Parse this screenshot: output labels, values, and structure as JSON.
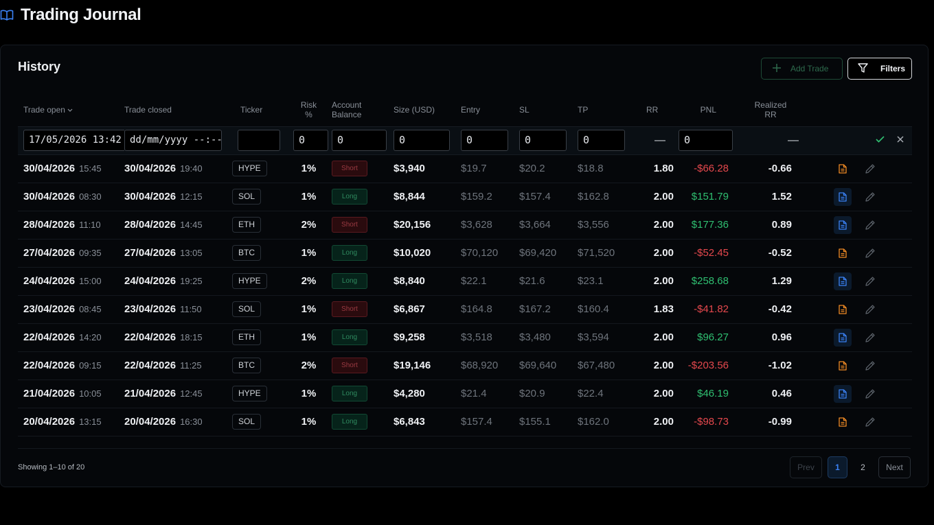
{
  "app": {
    "title": "Trading Journal",
    "logo_icon": "book-open-icon"
  },
  "history": {
    "title": "History",
    "add_trade_label": "Add Trade",
    "filters_label": "Filters",
    "columns": {
      "trade_open": "Trade open",
      "trade_closed": "Trade closed",
      "ticker": "Ticker",
      "risk_1": "Risk",
      "risk_2": "%",
      "balance_1": "Account",
      "balance_2": "Balance",
      "size": "Size (USD)",
      "entry": "Entry",
      "sl": "SL",
      "tp": "TP",
      "rr": "RR",
      "pnl": "PNL",
      "realized_1": "Realized",
      "realized_2": "RR"
    },
    "new_row": {
      "open_value": "17/05/2026 13:42",
      "closed_placeholder": "dd/mm/yyyy --:--",
      "ticker_value": "",
      "risk_value": "0",
      "balance_value": "0",
      "size_value": "0",
      "entry_value": "0",
      "sl_value": "0",
      "tp_value": "0",
      "rr_value": "—",
      "pnl_value": "0",
      "realized_value": "—"
    },
    "rows": [
      {
        "open_date": "30/04/2026",
        "open_time": "15:45",
        "close_date": "30/04/2026",
        "close_time": "19:40",
        "ticker": "HYPE",
        "risk": "1%",
        "side": "Short",
        "size": "$3,940",
        "entry": "$19.7",
        "sl": "$20.2",
        "tp": "$18.8",
        "rr": "1.80",
        "pnl": "-$66.28",
        "realized": "-0.66",
        "note_color": "orange"
      },
      {
        "open_date": "30/04/2026",
        "open_time": "08:30",
        "close_date": "30/04/2026",
        "close_time": "12:15",
        "ticker": "SOL",
        "risk": "1%",
        "side": "Long",
        "size": "$8,844",
        "entry": "$159.2",
        "sl": "$157.4",
        "tp": "$162.8",
        "rr": "2.00",
        "pnl": "$151.79",
        "realized": "1.52",
        "note_color": "blue"
      },
      {
        "open_date": "28/04/2026",
        "open_time": "11:10",
        "close_date": "28/04/2026",
        "close_time": "14:45",
        "ticker": "ETH",
        "risk": "2%",
        "side": "Short",
        "size": "$20,156",
        "entry": "$3,628",
        "sl": "$3,664",
        "tp": "$3,556",
        "rr": "2.00",
        "pnl": "$177.36",
        "realized": "0.89",
        "note_color": "blue"
      },
      {
        "open_date": "27/04/2026",
        "open_time": "09:35",
        "close_date": "27/04/2026",
        "close_time": "13:05",
        "ticker": "BTC",
        "risk": "1%",
        "side": "Long",
        "size": "$10,020",
        "entry": "$70,120",
        "sl": "$69,420",
        "tp": "$71,520",
        "rr": "2.00",
        "pnl": "-$52.45",
        "realized": "-0.52",
        "note_color": "orange"
      },
      {
        "open_date": "24/04/2026",
        "open_time": "15:00",
        "close_date": "24/04/2026",
        "close_time": "19:25",
        "ticker": "HYPE",
        "risk": "2%",
        "side": "Long",
        "size": "$8,840",
        "entry": "$22.1",
        "sl": "$21.6",
        "tp": "$23.1",
        "rr": "2.00",
        "pnl": "$258.68",
        "realized": "1.29",
        "note_color": "blue"
      },
      {
        "open_date": "23/04/2026",
        "open_time": "08:45",
        "close_date": "23/04/2026",
        "close_time": "11:50",
        "ticker": "SOL",
        "risk": "1%",
        "side": "Short",
        "size": "$6,867",
        "entry": "$164.8",
        "sl": "$167.2",
        "tp": "$160.4",
        "rr": "1.83",
        "pnl": "-$41.82",
        "realized": "-0.42",
        "note_color": "orange"
      },
      {
        "open_date": "22/04/2026",
        "open_time": "14:20",
        "close_date": "22/04/2026",
        "close_time": "18:15",
        "ticker": "ETH",
        "risk": "1%",
        "side": "Long",
        "size": "$9,258",
        "entry": "$3,518",
        "sl": "$3,480",
        "tp": "$3,594",
        "rr": "2.00",
        "pnl": "$96.27",
        "realized": "0.96",
        "note_color": "blue"
      },
      {
        "open_date": "22/04/2026",
        "open_time": "09:15",
        "close_date": "22/04/2026",
        "close_time": "11:25",
        "ticker": "BTC",
        "risk": "2%",
        "side": "Short",
        "size": "$19,146",
        "entry": "$68,920",
        "sl": "$69,640",
        "tp": "$67,480",
        "rr": "2.00",
        "pnl": "-$203.56",
        "realized": "-1.02",
        "note_color": "orange"
      },
      {
        "open_date": "21/04/2026",
        "open_time": "10:05",
        "close_date": "21/04/2026",
        "close_time": "12:45",
        "ticker": "HYPE",
        "risk": "1%",
        "side": "Long",
        "size": "$4,280",
        "entry": "$21.4",
        "sl": "$20.9",
        "tp": "$22.4",
        "rr": "2.00",
        "pnl": "$46.19",
        "realized": "0.46",
        "note_color": "blue"
      },
      {
        "open_date": "20/04/2026",
        "open_time": "13:15",
        "close_date": "20/04/2026",
        "close_time": "16:30",
        "ticker": "SOL",
        "risk": "1%",
        "side": "Long",
        "size": "$6,843",
        "entry": "$157.4",
        "sl": "$155.1",
        "tp": "$162.0",
        "rr": "2.00",
        "pnl": "-$98.73",
        "realized": "-0.99",
        "note_color": "orange"
      }
    ],
    "footer": {
      "showing": "Showing 1–10 of 20",
      "prev": "Prev",
      "pages": [
        "1",
        "2"
      ],
      "next": "Next",
      "current_page": "1"
    }
  },
  "colors": {
    "pos": "#2fbf71",
    "neg": "#e5484d",
    "accent_blue": "#3b82f6",
    "note_orange": "#f08a24"
  }
}
